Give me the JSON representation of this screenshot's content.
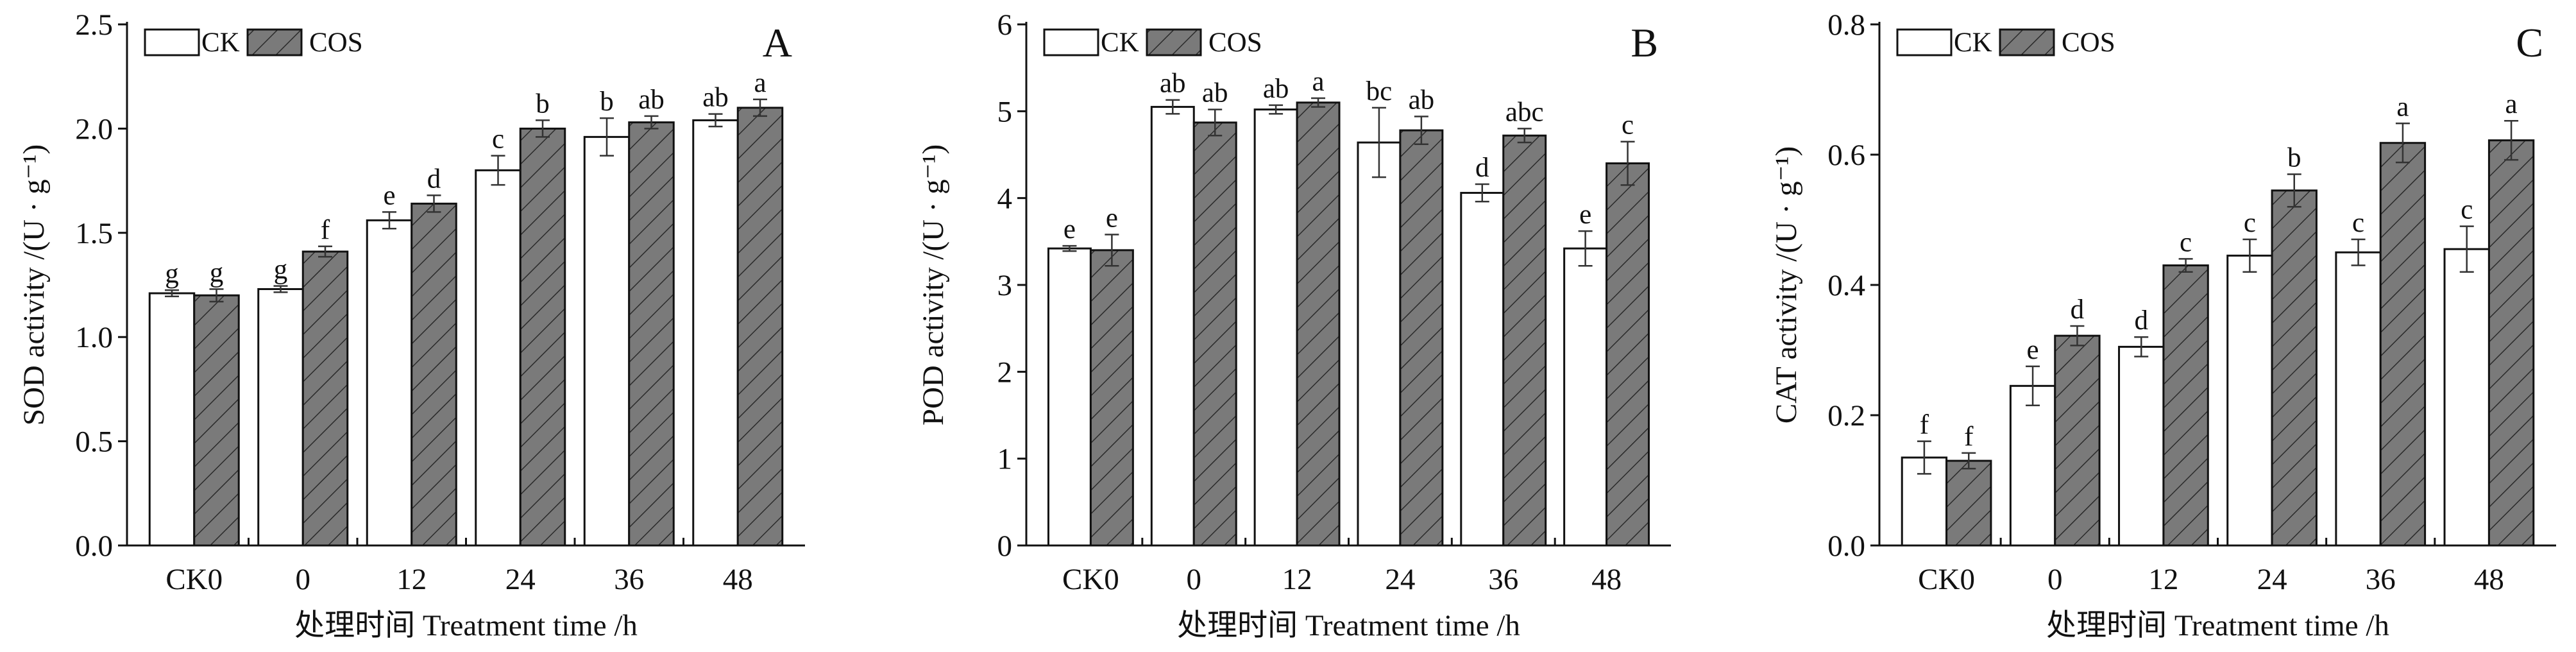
{
  "chart_data": [
    {
      "type": "bar",
      "panel_label": "A",
      "categories": [
        "CK0",
        "0",
        "12",
        "24",
        "36",
        "48"
      ],
      "series": [
        {
          "name": "CK",
          "values": [
            1.21,
            1.23,
            1.56,
            1.8,
            1.96,
            2.04
          ],
          "errors": [
            0.015,
            0.015,
            0.04,
            0.07,
            0.09,
            0.03
          ],
          "labels": [
            "g",
            "g",
            "e",
            "c",
            "b",
            "ab"
          ]
        },
        {
          "name": "COS",
          "values": [
            1.2,
            1.41,
            1.64,
            2.0,
            2.03,
            2.1
          ],
          "errors": [
            0.03,
            0.025,
            0.04,
            0.04,
            0.03,
            0.04
          ],
          "labels": [
            "g",
            "f",
            "d",
            "b",
            "ab",
            "a"
          ]
        }
      ],
      "xlabel": "处理时间 Treatment time /h",
      "ylabel": "SOD activity /(U · g⁻¹)",
      "ylim": [
        0,
        2.5
      ],
      "yticks": [
        0,
        0.5,
        1.0,
        1.5,
        2.0,
        2.5
      ],
      "ytick_labels": [
        "0.0",
        "0.5",
        "1.0",
        "1.5",
        "2.0",
        "2.5"
      ],
      "legend": "top-left",
      "grid": false
    },
    {
      "type": "bar",
      "panel_label": "B",
      "categories": [
        "CK0",
        "0",
        "12",
        "24",
        "36",
        "48"
      ],
      "series": [
        {
          "name": "CK",
          "values": [
            3.42,
            5.05,
            5.02,
            4.64,
            4.06,
            3.42
          ],
          "errors": [
            0.03,
            0.08,
            0.05,
            0.4,
            0.1,
            0.2
          ],
          "labels": [
            "e",
            "ab",
            "ab",
            "bc",
            "d",
            "e"
          ]
        },
        {
          "name": "COS",
          "values": [
            3.4,
            4.87,
            5.1,
            4.78,
            4.72,
            4.4
          ],
          "errors": [
            0.18,
            0.15,
            0.05,
            0.16,
            0.08,
            0.25
          ],
          "labels": [
            "e",
            "ab",
            "a",
            "ab",
            "abc",
            "c"
          ]
        }
      ],
      "xlabel": "处理时间 Treatment time /h",
      "ylabel": "POD activity /(U · g⁻¹)",
      "ylim": [
        0,
        6
      ],
      "yticks": [
        0,
        1,
        2,
        3,
        4,
        5,
        6
      ],
      "ytick_labels": [
        "0",
        "1",
        "2",
        "3",
        "4",
        "5",
        "6"
      ],
      "legend": "top-left",
      "grid": false
    },
    {
      "type": "bar",
      "panel_label": "C",
      "categories": [
        "CK0",
        "0",
        "12",
        "24",
        "36",
        "48"
      ],
      "series": [
        {
          "name": "CK",
          "values": [
            0.135,
            0.245,
            0.305,
            0.445,
            0.45,
            0.455
          ],
          "errors": [
            0.025,
            0.03,
            0.015,
            0.025,
            0.02,
            0.035
          ],
          "labels": [
            "f",
            "e",
            "d",
            "c",
            "c",
            "c"
          ]
        },
        {
          "name": "COS",
          "values": [
            0.13,
            0.322,
            0.43,
            0.545,
            0.618,
            0.622
          ],
          "errors": [
            0.012,
            0.015,
            0.01,
            0.025,
            0.03,
            0.03
          ],
          "labels": [
            "f",
            "d",
            "c",
            "b",
            "a",
            "a"
          ]
        }
      ],
      "xlabel": "处理时间 Treatment time /h",
      "ylabel": "CAT activity /(U · g⁻¹)",
      "ylim": [
        0,
        0.8
      ],
      "yticks": [
        0,
        0.2,
        0.4,
        0.6,
        0.8
      ],
      "ytick_labels": [
        "0.0",
        "0.2",
        "0.4",
        "0.6",
        "0.8"
      ],
      "legend": "top-left",
      "grid": false
    }
  ],
  "colors": {
    "ck_fill": "#ffffff",
    "cos_fill": "#7a7a7a",
    "axis": "#111111"
  }
}
